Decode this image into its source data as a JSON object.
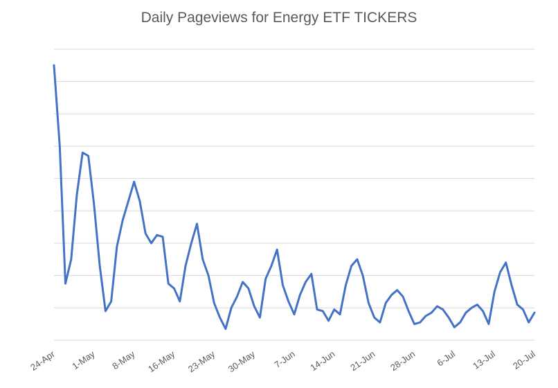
{
  "chart_data": {
    "type": "line",
    "title": "Daily Pageviews for Energy ETF TICKERS",
    "xlabel": "",
    "ylabel": "",
    "y_tick_labels_shown": false,
    "grid": "horizontal",
    "line_color": "#4472C4",
    "grid_color": "#d9d9d9",
    "x_tick_labels": [
      "24-Apr",
      "1-May",
      "8-May",
      "16-May",
      "23-May",
      "30-May",
      "7-Jun",
      "14-Jun",
      "21-Jun",
      "28-Jun",
      "6-Jul",
      "13-Jul",
      "20-Jul"
    ],
    "ylim": [
      0,
      9
    ],
    "series": [
      {
        "values": [
          8.5,
          6.0,
          1.75,
          2.5,
          4.5,
          5.8,
          5.7,
          4.2,
          2.3,
          0.9,
          1.2,
          2.9,
          3.7,
          4.3,
          4.9,
          4.3,
          3.3,
          3.0,
          3.25,
          3.2,
          1.75,
          1.6,
          1.2,
          2.3,
          3.0,
          3.6,
          2.5,
          2.0,
          1.15,
          0.7,
          0.35,
          1.0,
          1.35,
          1.8,
          1.6,
          1.05,
          0.7,
          1.9,
          2.3,
          2.8,
          1.7,
          1.2,
          0.8,
          1.4,
          1.8,
          2.05,
          0.95,
          0.9,
          0.6,
          0.95,
          0.8,
          1.7,
          2.3,
          2.5,
          2.0,
          1.15,
          0.7,
          0.55,
          1.15,
          1.4,
          1.55,
          1.35,
          0.9,
          0.5,
          0.55,
          0.75,
          0.85,
          1.05,
          0.95,
          0.7,
          0.4,
          0.55,
          0.85,
          1.0,
          1.1,
          0.9,
          0.5,
          1.5,
          2.1,
          2.4,
          1.7,
          1.1,
          0.95,
          0.55,
          0.85
        ]
      }
    ]
  }
}
